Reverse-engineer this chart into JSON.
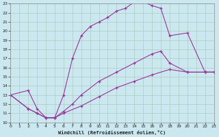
{
  "xlabel": "Windchill (Refroidissement éolien,°C)",
  "bg_color": "#cbe8f0",
  "grid_color": "#aaccbb",
  "line_color": "#993399",
  "xlim": [
    0,
    23
  ],
  "ylim": [
    10,
    23
  ],
  "xticks": [
    0,
    1,
    2,
    3,
    4,
    5,
    6,
    7,
    8,
    9,
    10,
    11,
    12,
    13,
    14,
    15,
    16,
    17,
    18,
    19,
    20,
    21,
    22,
    23
  ],
  "yticks": [
    10,
    11,
    12,
    13,
    14,
    15,
    16,
    17,
    18,
    19,
    20,
    21,
    22,
    23
  ],
  "curve1_x": [
    0,
    2,
    3,
    4,
    5,
    6,
    7,
    8,
    9,
    10,
    11,
    12,
    13,
    14,
    15,
    16,
    17,
    18,
    20,
    22,
    23
  ],
  "curve1_y": [
    13,
    13.5,
    11.5,
    10.5,
    10.5,
    13,
    17,
    19.5,
    20.5,
    21,
    21.5,
    22.2,
    22.5,
    23.2,
    23.2,
    22.8,
    22.5,
    19.5,
    19.8,
    15.5,
    15.5
  ],
  "curve2_x": [
    0,
    2,
    3,
    4,
    5,
    6,
    7,
    8,
    10,
    12,
    14,
    16,
    17,
    18,
    20,
    22,
    23
  ],
  "curve2_y": [
    13,
    11.5,
    11,
    10.5,
    10.5,
    11.2,
    12.0,
    13.0,
    14.5,
    15.5,
    16.5,
    17.5,
    17.8,
    16.5,
    15.5,
    15.5,
    15.5
  ],
  "curve3_x": [
    0,
    2,
    3,
    4,
    5,
    6,
    8,
    10,
    12,
    14,
    16,
    18,
    20,
    22,
    23
  ],
  "curve3_y": [
    13,
    11.5,
    11,
    10.5,
    10.5,
    11.0,
    11.8,
    12.8,
    13.8,
    14.5,
    15.2,
    15.8,
    15.5,
    15.5,
    15.5
  ]
}
